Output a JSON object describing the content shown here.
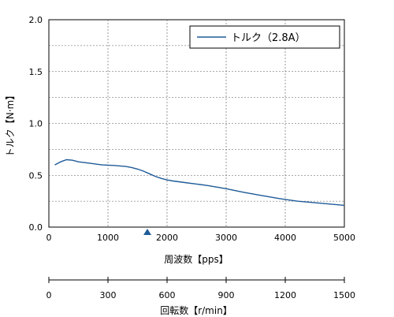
{
  "chart_data": {
    "type": "line",
    "ylabel": "トルク【N·m】",
    "xlabel": "周波数【pps】",
    "x2label": "回転数【r/min】",
    "xlim": [
      0,
      5000
    ],
    "ylim": [
      0,
      2.0
    ],
    "x_ticks": [
      "0",
      "1000",
      "2000",
      "3000",
      "4000",
      "5000"
    ],
    "y_ticks": [
      "0.0",
      "0.5",
      "1.0",
      "1.5",
      "2.0"
    ],
    "x2_ticks": [
      "0",
      "300",
      "600",
      "900",
      "1200",
      "1500"
    ],
    "x2lim": [
      0,
      1500
    ],
    "grid": true,
    "legend_position": "top-right",
    "marker": {
      "x": 1667,
      "shape": "triangle",
      "color": "#1f5b99"
    },
    "series": [
      {
        "name": "トルク（2.8A）",
        "color": "#1f5b99",
        "x": [
          100,
          200,
          300,
          400,
          500,
          700,
          900,
          1100,
          1300,
          1400,
          1500,
          1600,
          1700,
          1800,
          1900,
          2000,
          2100,
          2300,
          2500,
          2700,
          3000,
          3300,
          3600,
          3900,
          4200,
          4500,
          4800,
          5000
        ],
        "y": [
          0.6,
          0.63,
          0.65,
          0.645,
          0.63,
          0.615,
          0.6,
          0.595,
          0.585,
          0.575,
          0.56,
          0.54,
          0.515,
          0.49,
          0.47,
          0.455,
          0.445,
          0.43,
          0.415,
          0.4,
          0.37,
          0.335,
          0.305,
          0.275,
          0.25,
          0.235,
          0.22,
          0.21
        ]
      }
    ]
  }
}
